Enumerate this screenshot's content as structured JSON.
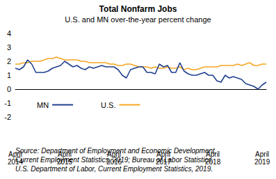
{
  "chart_data": {
    "type": "line",
    "title": "Total Nonfarm Jobs",
    "subtitle": "U.S. and MN over-the-year percent change",
    "annotations": [
      "Source: Department of Employment and Economic Development,",
      "Current Employment Statistics, 2019; Bureau of Labor Statistics,",
      "U.S. Department of Labor, Current Employment Statistics, 2019."
    ],
    "categories": [
      "April\n2014",
      null,
      null,
      null,
      null,
      null,
      null,
      null,
      null,
      null,
      null,
      null,
      "April\n2015",
      null,
      null,
      null,
      null,
      null,
      null,
      null,
      null,
      null,
      null,
      null,
      "April\n2016",
      null,
      null,
      null,
      null,
      null,
      null,
      null,
      null,
      null,
      null,
      null,
      "April\n2017",
      null,
      null,
      null,
      null,
      null,
      null,
      null,
      null,
      null,
      null,
      null,
      "April\n2018",
      null,
      null,
      null,
      null,
      null,
      null,
      null,
      null,
      null,
      null,
      null,
      "April\n2019",
      null
    ],
    "series": [
      {
        "name": "MN",
        "color": "#1f3f8f",
        "values": [
          1.5,
          1.4,
          1.6,
          2.1,
          1.8,
          1.2,
          1.2,
          1.2,
          1.3,
          1.5,
          1.6,
          1.7,
          2.0,
          1.8,
          1.6,
          1.7,
          1.5,
          1.4,
          1.6,
          1.5,
          1.6,
          1.7,
          1.6,
          1.6,
          1.6,
          1.4,
          1.0,
          0.8,
          1.4,
          1.5,
          1.6,
          1.6,
          1.2,
          1.2,
          1.1,
          1.8,
          1.6,
          1.7,
          1.2,
          1.2,
          1.9,
          1.3,
          1.1,
          1.0,
          1.0,
          1.1,
          1.2,
          1.0,
          1.0,
          0.6,
          0.5,
          1.0,
          0.8,
          0.9,
          0.8,
          0.7,
          0.4,
          0.3,
          0.2,
          0.0,
          0.3,
          0.5
        ]
      },
      {
        "name": "U.S.",
        "color": "#f5a623",
        "values": [
          1.8,
          1.8,
          1.9,
          1.9,
          2.0,
          2.0,
          2.0,
          2.1,
          2.2,
          2.2,
          2.3,
          2.2,
          2.1,
          2.1,
          2.1,
          2.1,
          2.0,
          2.0,
          1.9,
          1.9,
          1.9,
          1.9,
          1.9,
          1.8,
          1.8,
          1.7,
          1.7,
          1.8,
          1.8,
          1.7,
          1.6,
          1.6,
          1.6,
          1.5,
          1.6,
          1.5,
          1.5,
          1.6,
          1.5,
          1.5,
          1.6,
          1.4,
          1.5,
          1.4,
          1.4,
          1.5,
          1.6,
          1.6,
          1.6,
          1.6,
          1.7,
          1.7,
          1.7,
          1.7,
          1.8,
          1.7,
          1.8,
          1.9,
          1.7,
          1.7,
          1.8,
          1.8
        ]
      }
    ],
    "ylim": [
      -2,
      4
    ],
    "yticks": [
      -2,
      -1,
      0,
      1,
      2,
      3,
      4
    ],
    "grid": false,
    "legend": "bottom-left"
  }
}
